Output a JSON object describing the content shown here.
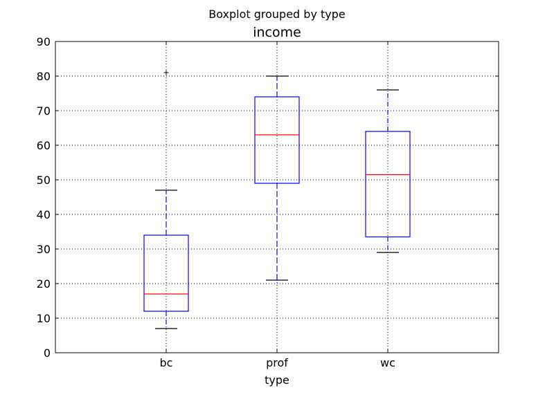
{
  "chart_data": {
    "type": "boxplot",
    "suptitle": "Boxplot grouped by type",
    "title": "income",
    "xlabel": "type",
    "ylabel": "",
    "ylim": [
      0,
      90
    ],
    "yticks": [
      0,
      10,
      20,
      30,
      40,
      50,
      60,
      70,
      80,
      90
    ],
    "grid": true,
    "categories": [
      "bc",
      "prof",
      "wc"
    ],
    "boxes": [
      {
        "category": "bc",
        "whisker_low": 7,
        "q1": 12,
        "median": 17,
        "q3": 34,
        "whisker_high": 47,
        "outliers": [
          81
        ]
      },
      {
        "category": "prof",
        "whisker_low": 21,
        "q1": 49,
        "median": 63,
        "q3": 74,
        "whisker_high": 80,
        "outliers": []
      },
      {
        "category": "wc",
        "whisker_low": 29,
        "q1": 33.5,
        "median": 51.5,
        "q3": 64,
        "whisker_high": 76,
        "outliers": []
      }
    ],
    "colors": {
      "box": "#0000ff",
      "median": "#ff0000",
      "caps": "#000000"
    }
  }
}
